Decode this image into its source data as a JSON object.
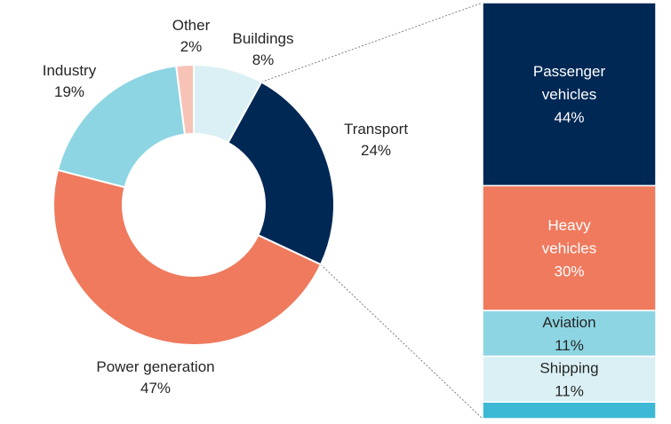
{
  "chart_data": [
    {
      "type": "pie",
      "variant": "donut",
      "categories": [
        "Buildings",
        "Transport",
        "Power generation",
        "Industry",
        "Other"
      ],
      "values": [
        8,
        24,
        47,
        19,
        2
      ],
      "value_labels": [
        "8%",
        "24%",
        "47%",
        "19%",
        "2%"
      ],
      "colors": [
        "#DAF0F5",
        "#002855",
        "#EF7A5E",
        "#8DD5E3",
        "#F6C3B6"
      ],
      "label_lines": [
        [
          "Buildings"
        ],
        [
          "Transport"
        ],
        [
          "Power generation"
        ],
        [
          "Industry"
        ],
        [
          "Other"
        ]
      ],
      "title": "",
      "legend": "none"
    },
    {
      "type": "bar",
      "variant": "stacked-100",
      "parent_category": "Transport",
      "categories": [
        "Passenger vehicles",
        "Heavy vehicles",
        "Aviation",
        "Shipping",
        ""
      ],
      "values": [
        44,
        30,
        11,
        11,
        4
      ],
      "value_labels": [
        "44%",
        "30%",
        "11%",
        "11%",
        ""
      ],
      "label_lines": [
        [
          "Passenger",
          "vehicles"
        ],
        [
          "Heavy",
          "vehicles"
        ],
        [
          "Aviation"
        ],
        [
          "Shipping"
        ],
        []
      ],
      "colors": [
        "#002855",
        "#EF7A5E",
        "#8DD5E3",
        "#DAF0F5",
        "#3EB9D5"
      ],
      "text_colors": [
        "#ffffff",
        "#ffffff",
        "#262626",
        "#262626",
        "#262626"
      ],
      "title": "",
      "legend": "none"
    }
  ]
}
